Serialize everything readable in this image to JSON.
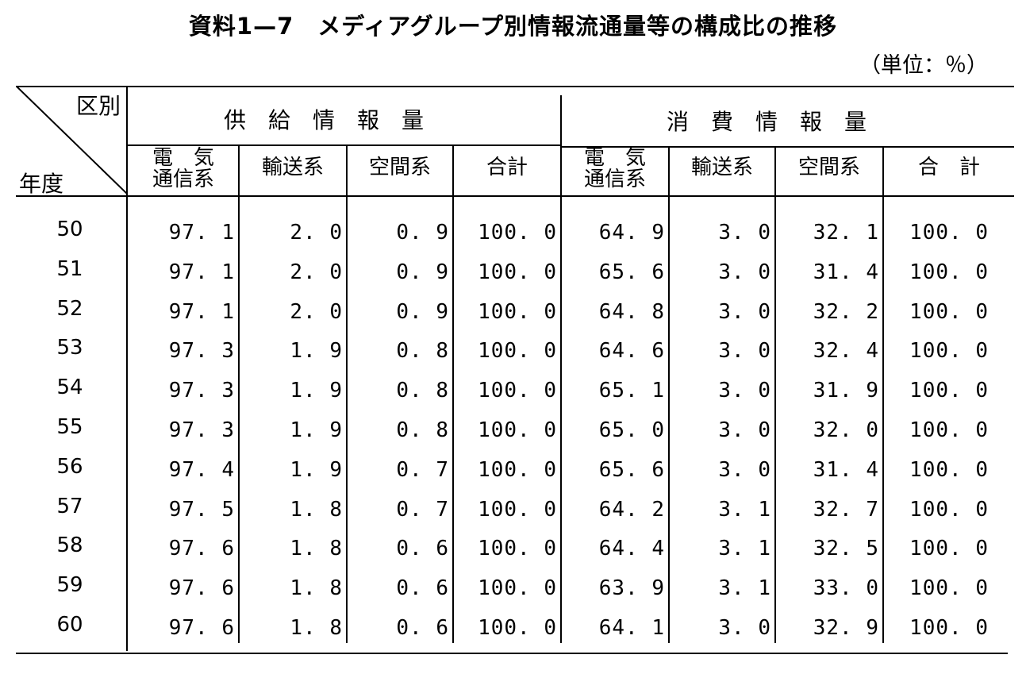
{
  "title": "資料1—7　メディアグループ別情報流通量等の構成比の推移",
  "unit": "（単位：％）",
  "header": {
    "corner_top": "区別",
    "corner_bottom": "年度",
    "group_supply": "供　給　情　報　量",
    "group_consume": "消　費　情　報　量",
    "columns": [
      {
        "line1": "電　気",
        "line2": "通信系"
      },
      {
        "line1": "輸送系",
        "line2": ""
      },
      {
        "line1": "空間系",
        "line2": ""
      },
      {
        "line1": "合計",
        "line2": ""
      },
      {
        "line1": "電　気",
        "line2": "通信系"
      },
      {
        "line1": "輸送系",
        "line2": ""
      },
      {
        "line1": "空間系",
        "line2": ""
      },
      {
        "line1": "合　計",
        "line2": ""
      }
    ]
  },
  "rows": [
    {
      "year": "50",
      "values": [
        "97. 1",
        "2. 0",
        "0. 9",
        "100. 0",
        "64. 9",
        "3. 0",
        "32. 1",
        "100. 0"
      ]
    },
    {
      "year": "51",
      "values": [
        "97. 1",
        "2. 0",
        "0. 9",
        "100. 0",
        "65. 6",
        "3. 0",
        "31. 4",
        "100. 0"
      ]
    },
    {
      "year": "52",
      "values": [
        "97. 1",
        "2. 0",
        "0. 9",
        "100. 0",
        "64. 8",
        "3. 0",
        "32. 2",
        "100. 0"
      ]
    },
    {
      "year": "53",
      "values": [
        "97. 3",
        "1. 9",
        "0. 8",
        "100. 0",
        "64. 6",
        "3. 0",
        "32. 4",
        "100. 0"
      ]
    },
    {
      "year": "54",
      "values": [
        "97. 3",
        "1. 9",
        "0. 8",
        "100. 0",
        "65. 1",
        "3. 0",
        "31. 9",
        "100. 0"
      ]
    },
    {
      "year": "55",
      "values": [
        "97. 3",
        "1. 9",
        "0. 8",
        "100. 0",
        "65. 0",
        "3. 0",
        "32. 0",
        "100. 0"
      ]
    },
    {
      "year": "56",
      "values": [
        "97. 4",
        "1. 9",
        "0. 7",
        "100. 0",
        "65. 6",
        "3. 0",
        "31. 4",
        "100. 0"
      ]
    },
    {
      "year": "57",
      "values": [
        "97. 5",
        "1. 8",
        "0. 7",
        "100. 0",
        "64. 2",
        "3. 1",
        "32. 7",
        "100. 0"
      ]
    },
    {
      "year": "58",
      "values": [
        "97. 6",
        "1. 8",
        "0. 6",
        "100. 0",
        "64. 4",
        "3. 1",
        "32. 5",
        "100. 0"
      ]
    },
    {
      "year": "59",
      "values": [
        "97. 6",
        "1. 8",
        "0. 6",
        "100. 0",
        "63. 9",
        "3. 1",
        "33. 0",
        "100. 0"
      ]
    },
    {
      "year": "60",
      "values": [
        "97. 6",
        "1. 8",
        "0. 6",
        "100. 0",
        "64. 1",
        "3. 0",
        "32. 9",
        "100. 0"
      ]
    }
  ]
}
